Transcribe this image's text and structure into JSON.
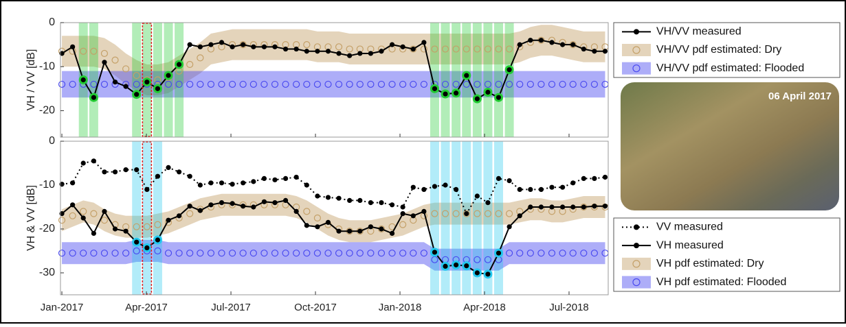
{
  "chart_data": [
    {
      "type": "line",
      "ylabel": "VH / VV [dB]",
      "xlim": [
        -0.05,
        19.39
      ],
      "xticks": [
        0,
        3,
        6,
        9,
        12,
        15,
        18
      ],
      "ylim": [
        -26,
        0
      ],
      "yticks": [
        0,
        -10,
        -20
      ],
      "x": [
        0,
        0.38,
        0.76,
        1.13,
        1.51,
        1.89,
        2.27,
        2.65,
        3.02,
        3.4,
        3.78,
        4.16,
        4.54,
        4.91,
        5.29,
        5.67,
        6.05,
        6.43,
        6.8,
        7.18,
        7.56,
        7.94,
        8.32,
        8.69,
        9.07,
        9.45,
        9.83,
        10.21,
        10.58,
        10.96,
        11.34,
        11.72,
        12.1,
        12.47,
        12.85,
        13.23,
        13.61,
        13.99,
        14.36,
        14.74,
        15.12,
        15.5,
        15.88,
        16.25,
        16.63,
        17.01,
        17.39,
        17.77,
        18.14,
        18.52,
        18.9,
        19.28
      ],
      "series": [
        {
          "name": "VH/VV measured",
          "color": "#000000",
          "style": "solid",
          "highlight": true,
          "values": [
            -7,
            -5.5,
            -13,
            -17,
            -9,
            -13.5,
            -14.5,
            -16.3,
            -13.5,
            -15,
            -12,
            -9.5,
            -5,
            -5.5,
            -5,
            -4.5,
            -5.5,
            -5,
            -5.5,
            -5.5,
            -5.5,
            -6,
            -6,
            -6.5,
            -6.5,
            -6.5,
            -7,
            -7.5,
            -7,
            -7,
            -6.5,
            -5,
            -5.5,
            -6,
            -4.5,
            -15,
            -16.2,
            -16,
            -12,
            -17.3,
            -15.8,
            -17,
            -10.7,
            -5,
            -4,
            -4,
            -4.5,
            -5,
            -5,
            -6,
            -6.5,
            -6.5
          ]
        },
        {
          "name": "VH/VV pdf estimated: Dry",
          "color": "#c4a068",
          "style": "pdf",
          "band": 3.5,
          "values": [
            -6.5,
            -6.5,
            -6.5,
            -6.5,
            -7,
            -8.5,
            -10.5,
            -12,
            -13,
            -13,
            -12.5,
            -11,
            -9.5,
            -8,
            -6,
            -5.5,
            -5,
            -5,
            -5,
            -5,
            -5,
            -5,
            -5,
            -5,
            -5.5,
            -5.5,
            -5.5,
            -6,
            -6,
            -6,
            -6,
            -6,
            -6,
            -6,
            -6,
            -6,
            -6,
            -6,
            -6,
            -6,
            -6,
            -6,
            -6,
            -5.5,
            -4.5,
            -4,
            -4,
            -4.5,
            -5,
            -5.5,
            -5.5,
            -5.5
          ]
        },
        {
          "name": "VH/VV pdf estimated: Flooded",
          "color": "#4a4af0",
          "style": "pdf",
          "band": 3,
          "values": [
            -14,
            -14,
            -14,
            -14,
            -14,
            -14,
            -14,
            -14,
            -14,
            -14,
            -14,
            -14,
            -14,
            -14,
            -14,
            -14,
            -14,
            -14,
            -14,
            -14,
            -14,
            -14,
            -14,
            -14,
            -14,
            -14,
            -14,
            -14,
            -14,
            -14,
            -14,
            -14,
            -14,
            -14,
            -14,
            -14,
            -14,
            -14,
            -14,
            -14,
            -14,
            -14,
            -14,
            -14,
            -14,
            -14,
            -14,
            -14,
            -14,
            -14,
            -14,
            -14
          ]
        }
      ],
      "highlight_color": "#22cc33",
      "highlight_indices": [
        2,
        3,
        7,
        8,
        9,
        10,
        11,
        35,
        36,
        37,
        38,
        39,
        40,
        41,
        42
      ],
      "selected_index": 8,
      "selected_color": "#e02020"
    },
    {
      "type": "line",
      "ylabel": "VH & VV [dB]",
      "xlim": [
        -0.05,
        19.39
      ],
      "xticks": [
        {
          "value": 0,
          "label": "Jan-2017"
        },
        {
          "value": 3,
          "label": "Apr-2017"
        },
        {
          "value": 6,
          "label": "Jul-2017"
        },
        {
          "value": 9,
          "label": "Oct-2017"
        },
        {
          "value": 12,
          "label": "Jan-2018"
        },
        {
          "value": 15,
          "label": "Apr-2018"
        },
        {
          "value": 18,
          "label": "Jul-2018"
        }
      ],
      "ylim": [
        -35,
        0
      ],
      "yticks": [
        0,
        -10,
        -20,
        -30
      ],
      "x": [
        0,
        0.38,
        0.76,
        1.13,
        1.51,
        1.89,
        2.27,
        2.65,
        3.02,
        3.4,
        3.78,
        4.16,
        4.54,
        4.91,
        5.29,
        5.67,
        6.05,
        6.43,
        6.8,
        7.18,
        7.56,
        7.94,
        8.32,
        8.69,
        9.07,
        9.45,
        9.83,
        10.21,
        10.58,
        10.96,
        11.34,
        11.72,
        12.1,
        12.47,
        12.85,
        13.23,
        13.61,
        13.99,
        14.36,
        14.74,
        15.12,
        15.5,
        15.88,
        16.25,
        16.63,
        17.01,
        17.39,
        17.77,
        18.14,
        18.52,
        18.9,
        19.28
      ],
      "series": [
        {
          "name": "VV measured",
          "color": "#000000",
          "style": "dotted",
          "values": [
            -9.8,
            -9.5,
            -5,
            -4.5,
            -7,
            -7,
            -6.5,
            -6.5,
            -11,
            -8,
            -6,
            -7,
            -8,
            -10,
            -9.5,
            -9.5,
            -9.8,
            -9.5,
            -9.2,
            -8.5,
            -8.8,
            -8.5,
            -8.2,
            -10,
            -12.5,
            -12.8,
            -13,
            -13.5,
            -13.5,
            -14,
            -14,
            -14.5,
            -15,
            -10.5,
            -11,
            -10.3,
            -10,
            -11,
            -16.5,
            -12.5,
            -14,
            -8.5,
            -9,
            -11,
            -11,
            -11,
            -10.5,
            -10.5,
            -9.5,
            -8.5,
            -8.5,
            -8.2
          ]
        },
        {
          "name": "VH measured",
          "color": "#000000",
          "style": "solid",
          "highlight": true,
          "values": [
            -16.5,
            -14.5,
            -17.5,
            -21,
            -16,
            -20,
            -20.5,
            -23,
            -24.3,
            -22.5,
            -18,
            -17,
            -14.8,
            -15.8,
            -14.5,
            -14,
            -14.2,
            -14.8,
            -15,
            -13.8,
            -14,
            -13.5,
            -16,
            -19.2,
            -19.5,
            -18.5,
            -20.5,
            -20.5,
            -20.5,
            -19.5,
            -20,
            -21,
            -16.5,
            -17,
            -16,
            -25.3,
            -28.5,
            -28.2,
            -28.4,
            -30,
            -30.3,
            -25.5,
            -19.5,
            -17,
            -15,
            -15,
            -15,
            -15,
            -15,
            -15,
            -14.8,
            -14.8
          ]
        },
        {
          "name": "VH pdf estimated: Dry",
          "color": "#c4a068",
          "style": "pdf",
          "band": 2.5,
          "values": [
            -18,
            -17,
            -16,
            -16.5,
            -18,
            -19,
            -19.5,
            -19.5,
            -19.5,
            -19,
            -18.5,
            -17.5,
            -16.5,
            -15.5,
            -15,
            -14.5,
            -14.5,
            -14.5,
            -14.5,
            -14.5,
            -14.5,
            -14.5,
            -15,
            -16,
            -17.5,
            -19,
            -20,
            -20.5,
            -20.5,
            -20.5,
            -20,
            -19.5,
            -19,
            -18,
            -17,
            -16.5,
            -16.5,
            -16.5,
            -16.5,
            -16.5,
            -16.5,
            -16.5,
            -16.5,
            -16,
            -15.5,
            -15.5,
            -16,
            -16,
            -15.5,
            -15,
            -15,
            -15
          ]
        },
        {
          "name": "VH pdf estimated: Flooded",
          "color": "#4a4af0",
          "style": "pdf",
          "band": 2.5,
          "values": [
            -25.5,
            -25.5,
            -25.5,
            -25.5,
            -25.5,
            -25.5,
            -25.5,
            -25,
            -25,
            -25,
            -25.5,
            -25.5,
            -25.5,
            -25.5,
            -25.5,
            -25.5,
            -25.5,
            -25.5,
            -25.5,
            -25.5,
            -25.5,
            -25.5,
            -25.5,
            -25.5,
            -25.5,
            -25.5,
            -25.5,
            -25.5,
            -25.5,
            -25.5,
            -25.5,
            -25.5,
            -25.5,
            -25.5,
            -25.5,
            -27,
            -27,
            -27,
            -27,
            -27,
            -27,
            -27,
            -25.5,
            -25.5,
            -25.5,
            -25.5,
            -25.5,
            -25.5,
            -25.5,
            -25.5,
            -25.5,
            -25.5
          ]
        }
      ],
      "highlight_color": "#22c8ee",
      "highlight_indices": [
        7,
        8,
        9,
        35,
        36,
        37,
        38,
        39,
        40,
        41
      ],
      "selected_index": 8,
      "selected_color": "#e02020"
    }
  ],
  "photo": {
    "caption": "06 April 2017"
  }
}
